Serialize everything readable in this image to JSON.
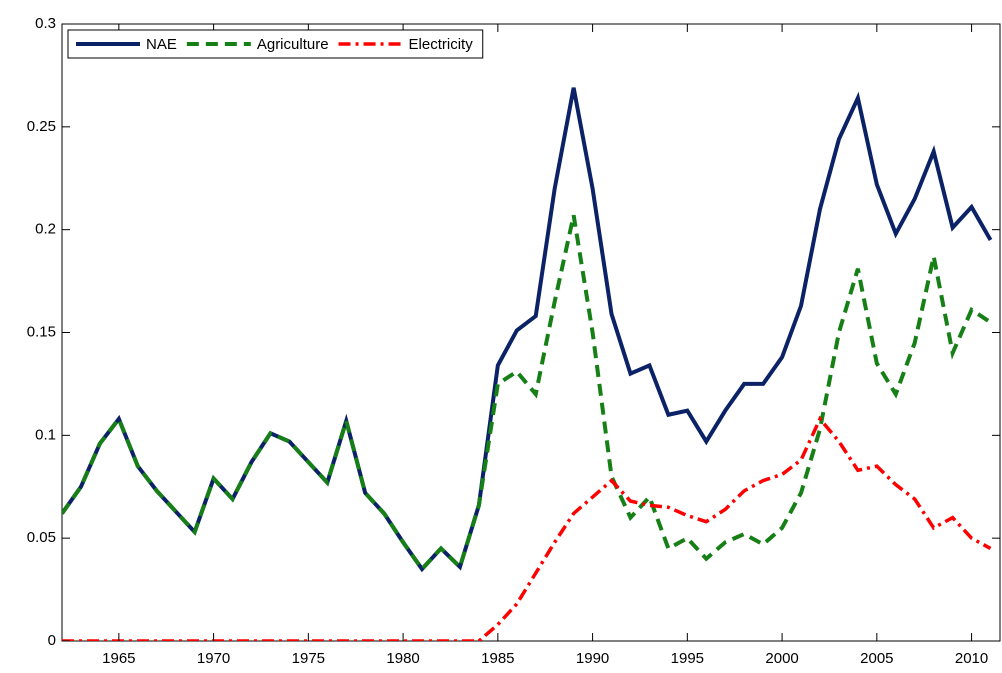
{
  "chart_data": {
    "type": "line",
    "x": [
      1962,
      1963,
      1964,
      1965,
      1966,
      1967,
      1968,
      1969,
      1970,
      1971,
      1972,
      1973,
      1974,
      1975,
      1976,
      1977,
      1978,
      1979,
      1980,
      1981,
      1982,
      1983,
      1984,
      1985,
      1986,
      1987,
      1988,
      1989,
      1990,
      1991,
      1992,
      1993,
      1994,
      1995,
      1996,
      1997,
      1998,
      1999,
      2000,
      2001,
      2002,
      2003,
      2004,
      2005,
      2006,
      2007,
      2008,
      2009,
      2010,
      2011
    ],
    "series": [
      {
        "name": "NAE",
        "color": "#0c2266",
        "style": "solid",
        "values": [
          0.062,
          0.075,
          0.096,
          0.108,
          0.085,
          0.073,
          0.063,
          0.053,
          0.079,
          0.069,
          0.087,
          0.101,
          0.097,
          0.087,
          0.077,
          0.107,
          0.072,
          0.062,
          0.048,
          0.035,
          0.045,
          0.036,
          0.066,
          0.134,
          0.151,
          0.158,
          0.22,
          0.269,
          0.22,
          0.159,
          0.13,
          0.134,
          0.11,
          0.112,
          0.097,
          0.112,
          0.125,
          0.125,
          0.138,
          0.163,
          0.21,
          0.244,
          0.264,
          0.222,
          0.198,
          0.215,
          0.238,
          0.201,
          0.211,
          0.195
        ]
      },
      {
        "name": "Agriculture",
        "color": "#168016",
        "style": "dashed",
        "values": [
          0.062,
          0.075,
          0.096,
          0.108,
          0.085,
          0.073,
          0.063,
          0.053,
          0.079,
          0.069,
          0.087,
          0.101,
          0.097,
          0.087,
          0.077,
          0.107,
          0.072,
          0.062,
          0.048,
          0.035,
          0.045,
          0.036,
          0.066,
          0.125,
          0.131,
          0.12,
          0.165,
          0.207,
          0.15,
          0.08,
          0.06,
          0.07,
          0.045,
          0.05,
          0.04,
          0.048,
          0.052,
          0.047,
          0.055,
          0.072,
          0.103,
          0.15,
          0.181,
          0.135,
          0.12,
          0.145,
          0.187,
          0.14,
          0.161,
          0.155
        ]
      },
      {
        "name": "Electricity",
        "color": "#ff0000",
        "style": "dashdot",
        "values": [
          0,
          0,
          0,
          0,
          0,
          0,
          0,
          0,
          0,
          0,
          0,
          0,
          0,
          0,
          0,
          0,
          0,
          0,
          0,
          0,
          0,
          0,
          0,
          0.008,
          0.018,
          0.033,
          0.048,
          0.062,
          0.07,
          0.078,
          0.068,
          0.066,
          0.065,
          0.061,
          0.058,
          0.064,
          0.073,
          0.078,
          0.081,
          0.088,
          0.108,
          0.097,
          0.083,
          0.085,
          0.076,
          0.069,
          0.055,
          0.06,
          0.05,
          0.045
        ]
      }
    ],
    "xlim": [
      1962,
      2011.5
    ],
    "xticks": [
      1965,
      1970,
      1975,
      1980,
      1985,
      1990,
      1995,
      2000,
      2005,
      2010
    ],
    "ylim": [
      0,
      0.3
    ],
    "yticks": [
      0,
      0.05,
      0.1,
      0.15,
      0.2,
      0.25,
      0.3
    ],
    "legend": "upper left"
  }
}
